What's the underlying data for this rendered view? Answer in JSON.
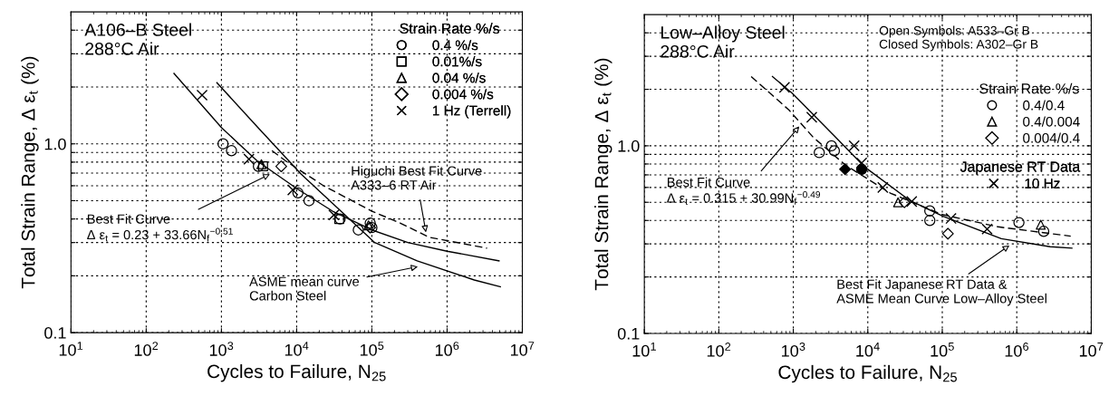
{
  "chart_data": [
    {
      "type": "scatter",
      "xlabel": "Cycles to Failure, N$_{25}$",
      "ylabel": "Total Strain Range, Δ ε$_{t}$ (%)",
      "log": "xy",
      "xlim": [
        10,
        10000000
      ],
      "ylim": [
        0.1,
        5
      ],
      "xticks": [
        {
          "value": 10,
          "label": "10$^{1}$"
        },
        {
          "value": 100,
          "label": "10$^{2}$"
        },
        {
          "value": 1000,
          "label": "10$^{3}$"
        },
        {
          "value": 10000,
          "label": "10$^{4}$"
        },
        {
          "value": 100000,
          "label": "10$^{5}$"
        },
        {
          "value": 1000000,
          "label": "10$^{6}$"
        },
        {
          "value": 10000000,
          "label": "10$^{7}$"
        }
      ],
      "yticks": [
        {
          "value": 0.1,
          "label": "0.1"
        },
        {
          "value": 0.2,
          "label": null
        },
        {
          "value": 0.3,
          "label": null
        },
        {
          "value": 0.4,
          "label": null
        },
        {
          "value": 0.5,
          "label": null
        },
        {
          "value": 0.6,
          "label": null
        },
        {
          "value": 0.7,
          "label": null
        },
        {
          "value": 0.8,
          "label": null
        },
        {
          "value": 0.9,
          "label": null
        },
        {
          "value": 1,
          "label": "1.0"
        },
        {
          "value": 2,
          "label": null
        },
        {
          "value": 3,
          "label": null
        },
        {
          "value": 4,
          "label": null
        }
      ],
      "grid": true,
      "legend": "top right",
      "legend_title": [
        "Strain Rate %/s"
      ],
      "annotations": [
        "A106–B Steel\n288°C Air",
        {
          "text": "Best Fit Curve\nΔ ε$_{t}$ = 0.23 + 33.66N$_{f}$$^{−0.51}$",
          "x": 4730,
          "y": 0.7
        },
        {
          "text": "Higuchi Best Fit Curve\nA333–6 RT Air",
          "x": 530000,
          "y": 0.33
        },
        {
          "text": "ASME mean curve\nCarbon Steel",
          "x": 440000,
          "y": 0.225
        }
      ],
      "series": [
        {
          "name": "0.4 %/s",
          "marker": "circle",
          "color": "#000000",
          "x": [
            1050,
            1360,
            3100,
            10400,
            14600,
            37800,
            66000,
            95000,
            100000
          ],
          "values": [
            1.0,
            0.92,
            0.76,
            0.55,
            0.5,
            0.4,
            0.35,
            0.38,
            0.36
          ]
        },
        {
          "name": "0.01%/s",
          "marker": "square",
          "color": "#000000",
          "x": [
            3580,
            36800
          ],
          "values": [
            0.76,
            0.4
          ]
        },
        {
          "name": "0.04 %/s",
          "marker": "triangle",
          "color": "#000000",
          "x": [
            3400,
            90000
          ],
          "values": [
            0.78,
            0.37
          ]
        },
        {
          "name": "0.004 %/s",
          "marker": "diamond",
          "color": "#000000",
          "x": [
            6240,
            94600
          ],
          "values": [
            0.76,
            0.36
          ]
        },
        {
          "name": "1 Hz (Terrell)",
          "marker": "cross",
          "color": "#000000",
          "x": [
            553,
            2320,
            8870,
            31200
          ],
          "values": [
            1.81,
            0.83,
            0.57,
            0.42
          ]
        },
        {
          "type": "line",
          "marker": "none",
          "line_style": "solid",
          "color": "#000000",
          "x": [
            234,
            1000,
            3000,
            10000,
            30000,
            100000,
            300000,
            1000000,
            4900000
          ],
          "values": [
            2.36,
            1.22,
            0.81,
            0.58,
            0.44,
            0.35,
            0.3,
            0.27,
            0.24
          ]
        },
        {
          "type": "line",
          "marker": "none",
          "line_style": "solid",
          "color": "#000000",
          "x": [
            870,
            3000,
            11500,
            109000,
            400000,
            2300000,
            5100000
          ],
          "values": [
            2.11,
            1.23,
            0.69,
            0.3,
            0.24,
            0.19,
            0.175
          ]
        },
        {
          "type": "line",
          "marker": "none",
          "line_style": "dashed",
          "color": "#000000",
          "x": [
            4700,
            7200,
            22800,
            100000,
            240000,
            580000,
            3400000
          ],
          "values": [
            0.92,
            0.81,
            0.6,
            0.44,
            0.38,
            0.32,
            0.28
          ]
        }
      ]
    },
    {
      "type": "scatter",
      "xlabel": "Cycles to Failure, N$_{25}$",
      "ylabel": "Total Strain Range, Δ ε$_{t}$ (%)",
      "log": "xy",
      "xlim": [
        10,
        10000000
      ],
      "ylim": [
        0.1,
        5
      ],
      "xticks": [
        {
          "value": 10,
          "label": "10$^{1}$"
        },
        {
          "value": 100,
          "label": "10$^{2}$"
        },
        {
          "value": 1000,
          "label": "10$^{3}$"
        },
        {
          "value": 10000,
          "label": "10$^{4}$"
        },
        {
          "value": 100000,
          "label": "10$^{5}$"
        },
        {
          "value": 1000000,
          "label": "10$^{6}$"
        },
        {
          "value": 10000000,
          "label": "10$^{7}$"
        }
      ],
      "yticks": [
        {
          "value": 0.1,
          "label": "0.1"
        },
        {
          "value": 0.2,
          "label": null
        },
        {
          "value": 0.3,
          "label": null
        },
        {
          "value": 0.4,
          "label": null
        },
        {
          "value": 0.5,
          "label": null
        },
        {
          "value": 0.6,
          "label": null
        },
        {
          "value": 0.7,
          "label": null
        },
        {
          "value": 0.8,
          "label": null
        },
        {
          "value": 0.9,
          "label": null
        },
        {
          "value": 1,
          "label": "1.0"
        },
        {
          "value": 2,
          "label": null
        },
        {
          "value": 3,
          "label": null
        },
        {
          "value": 4,
          "label": null
        }
      ],
      "grid": true,
      "legend": "top right",
      "legend_title": [
        "Strain Rate %/s",
        "Japanese RT Data"
      ],
      "annotations": [
        "Low–Alloy Steel\n288°C Air",
        "Open Symbols: A533–Gr B\nClosed Symbols: A302–Gr B",
        {
          "text": "Best Fit Curve\nΔ ε$_{t}$ = 0.315 + 30.99N$_{f}$$^{−0.49}$",
          "x": 1270,
          "y": 1.3
        },
        {
          "text": "Best Fit Japanese RT Data &\nASME Mean Curve Low–Alloy Steel",
          "x": 850000,
          "y": 0.3
        }
      ],
      "series": [
        {
          "name": "0.4/0.4",
          "marker": "circle",
          "color": "#000000",
          "x": [
            2230,
            3250,
            3560,
            68000,
            68000,
            1070000,
            2300000
          ],
          "values": [
            0.92,
            1.0,
            0.94,
            0.45,
            0.4,
            0.39,
            0.35
          ]
        },
        {
          "name": "0.4/0.004",
          "marker": "triangle",
          "color": "#000000",
          "x": [
            25500,
            2100000
          ],
          "values": [
            0.5,
            0.38
          ]
        },
        {
          "name": "0.004/0.4",
          "marker": "diamond",
          "color": "#000000",
          "x": [
            31000,
            119000
          ],
          "values": [
            0.5,
            0.34
          ]
        },
        {
          "marker": "diamond",
          "color": "#000000",
          "x": [
            4950
          ],
          "values": [
            0.75
          ]
        },
        {
          "marker": "circle",
          "color": "#000000",
          "x": [
            8280
          ],
          "values": [
            0.75
          ]
        },
        {
          "name": "10 Hz",
          "marker": "cross",
          "color": "#000000",
          "x": [
            762,
            1770,
            6560,
            8280,
            15900,
            38900,
            131000,
            400000
          ],
          "values": [
            2.05,
            1.42,
            1.0,
            0.81,
            0.6,
            0.505,
            0.41,
            0.36
          ]
        },
        {
          "type": "line",
          "marker": "none",
          "line_style": "dashed",
          "color": "#000000",
          "x": [
            272,
            877,
            1850,
            5000,
            20000,
            100000,
            560000,
            5300000
          ],
          "values": [
            2.34,
            1.55,
            1.11,
            0.79,
            0.56,
            0.43,
            0.37,
            0.33
          ]
        },
        {
          "type": "line",
          "marker": "none",
          "line_style": "solid",
          "color": "#000000",
          "x": [
            525,
            962,
            3560,
            9120,
            37000,
            104000,
            620000,
            2800000,
            5500000
          ],
          "values": [
            2.34,
            1.91,
            1.13,
            0.77,
            0.51,
            0.42,
            0.32,
            0.29,
            0.285
          ]
        }
      ]
    }
  ]
}
